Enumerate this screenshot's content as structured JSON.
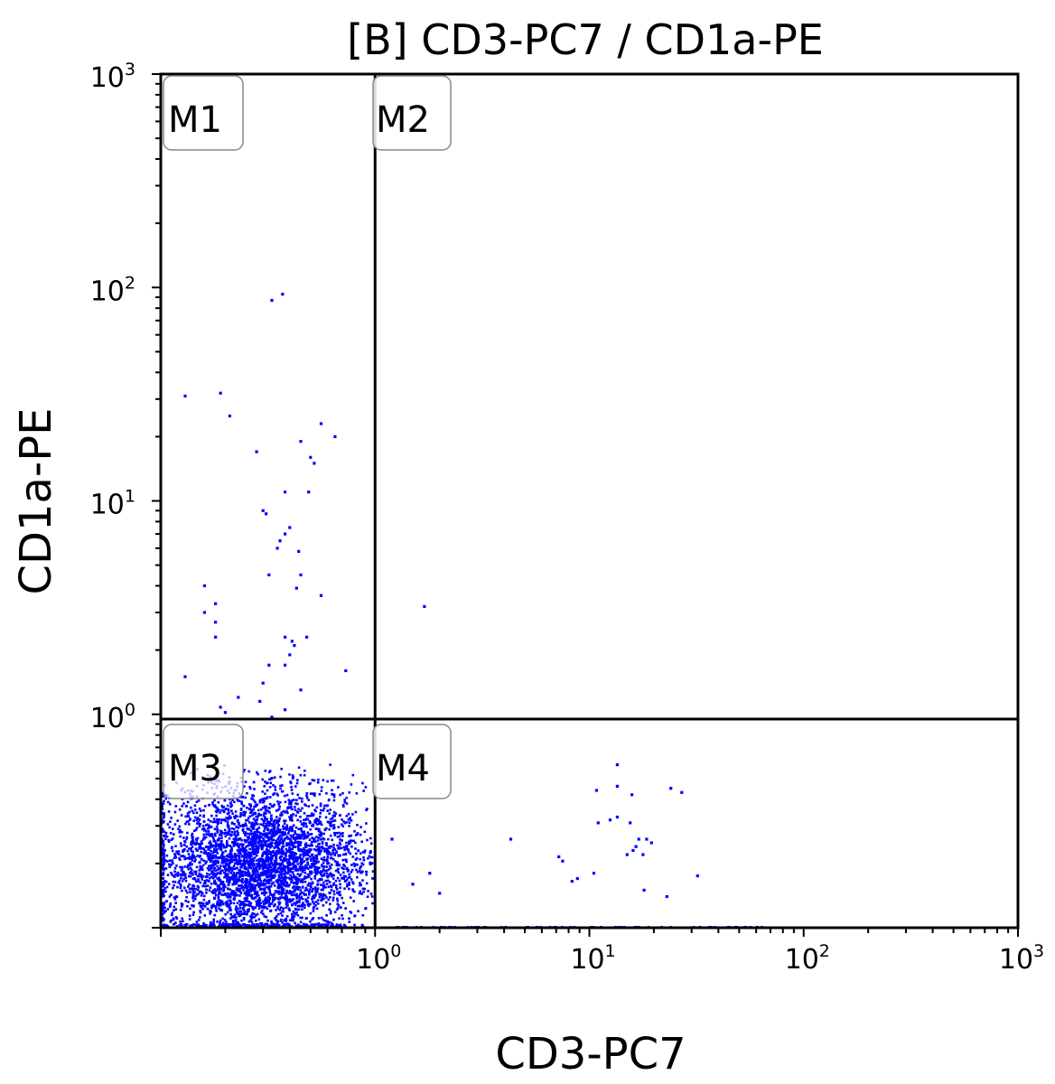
{
  "chart_data": {
    "type": "scatter",
    "title": "[B] CD3-PC7 / CD1a-PE",
    "xlabel": "CD3-PC7",
    "ylabel": "CD1a-PE",
    "xscale": "log",
    "yscale": "log",
    "xlim": [
      0.1,
      1000
    ],
    "ylim": [
      0.1,
      1000
    ],
    "x_ticks": [
      {
        "base": "10",
        "exp": "0"
      },
      {
        "base": "10",
        "exp": "1"
      },
      {
        "base": "10",
        "exp": "2"
      },
      {
        "base": "10",
        "exp": "3"
      }
    ],
    "y_ticks": [
      {
        "base": "10",
        "exp": "0"
      },
      {
        "base": "10",
        "exp": "1"
      },
      {
        "base": "10",
        "exp": "2"
      },
      {
        "base": "10",
        "exp": "3"
      }
    ],
    "quadrant_gate": {
      "x": 1.0,
      "y": 0.95
    },
    "quadrants": [
      "M1",
      "M2",
      "M3",
      "M4"
    ],
    "point_color": "#0000ff",
    "series": [
      {
        "points": [
          [
            0.37,
            93
          ],
          [
            0.33,
            87
          ],
          [
            0.13,
            31
          ],
          [
            0.19,
            32
          ],
          [
            0.21,
            25
          ],
          [
            0.56,
            23
          ],
          [
            0.65,
            20
          ],
          [
            0.45,
            19
          ],
          [
            0.5,
            16
          ],
          [
            0.52,
            15
          ],
          [
            0.28,
            17
          ],
          [
            0.38,
            11
          ],
          [
            0.49,
            11
          ],
          [
            0.3,
            9.0
          ],
          [
            0.31,
            8.7
          ],
          [
            0.4,
            7.5
          ],
          [
            0.38,
            7.0
          ],
          [
            0.36,
            6.5
          ],
          [
            0.35,
            6.0
          ],
          [
            0.44,
            5.8
          ],
          [
            0.32,
            4.5
          ],
          [
            0.45,
            4.5
          ],
          [
            0.16,
            4.0
          ],
          [
            0.43,
            3.9
          ],
          [
            0.56,
            3.6
          ],
          [
            0.18,
            3.3
          ],
          [
            0.16,
            3.0
          ],
          [
            0.18,
            2.7
          ],
          [
            0.18,
            2.3
          ],
          [
            0.38,
            2.3
          ],
          [
            0.41,
            2.2
          ],
          [
            0.48,
            2.3
          ],
          [
            0.42,
            2.1
          ],
          [
            0.4,
            1.9
          ],
          [
            0.38,
            1.7
          ],
          [
            0.32,
            1.7
          ],
          [
            0.13,
            1.5
          ],
          [
            0.3,
            1.4
          ],
          [
            0.73,
            1.6
          ],
          [
            0.45,
            1.3
          ],
          [
            0.23,
            1.2
          ],
          [
            0.29,
            1.15
          ],
          [
            0.19,
            1.08
          ],
          [
            0.2,
            1.02
          ],
          [
            0.38,
            1.05
          ],
          [
            0.33,
            0.97
          ],
          [
            1.7,
            3.2
          ],
          [
            13.5,
            0.58
          ],
          [
            10.8,
            0.44
          ],
          [
            13.5,
            0.46
          ],
          [
            15.8,
            0.42
          ],
          [
            24,
            0.45
          ],
          [
            27,
            0.43
          ],
          [
            11,
            0.31
          ],
          [
            12.5,
            0.32
          ],
          [
            13.5,
            0.33
          ],
          [
            15.5,
            0.31
          ],
          [
            4.3,
            0.26
          ],
          [
            17,
            0.26
          ],
          [
            18.5,
            0.26
          ],
          [
            19.5,
            0.25
          ],
          [
            16.5,
            0.24
          ],
          [
            16,
            0.23
          ],
          [
            15,
            0.22
          ],
          [
            7.2,
            0.215
          ],
          [
            7.5,
            0.205
          ],
          [
            17.8,
            0.22
          ],
          [
            10.5,
            0.18
          ],
          [
            8.3,
            0.165
          ],
          [
            32,
            0.175
          ],
          [
            8.8,
            0.17
          ],
          [
            1.8,
            0.18
          ],
          [
            1.2,
            0.26
          ],
          [
            18,
            0.15
          ],
          [
            23,
            0.14
          ],
          [
            2.0,
            0.145
          ],
          [
            1.5,
            0.16
          ]
        ]
      }
    ]
  },
  "quadrant_labels": {
    "m1": "M1",
    "m2": "M2",
    "m3": "M3",
    "m4": "M4"
  }
}
